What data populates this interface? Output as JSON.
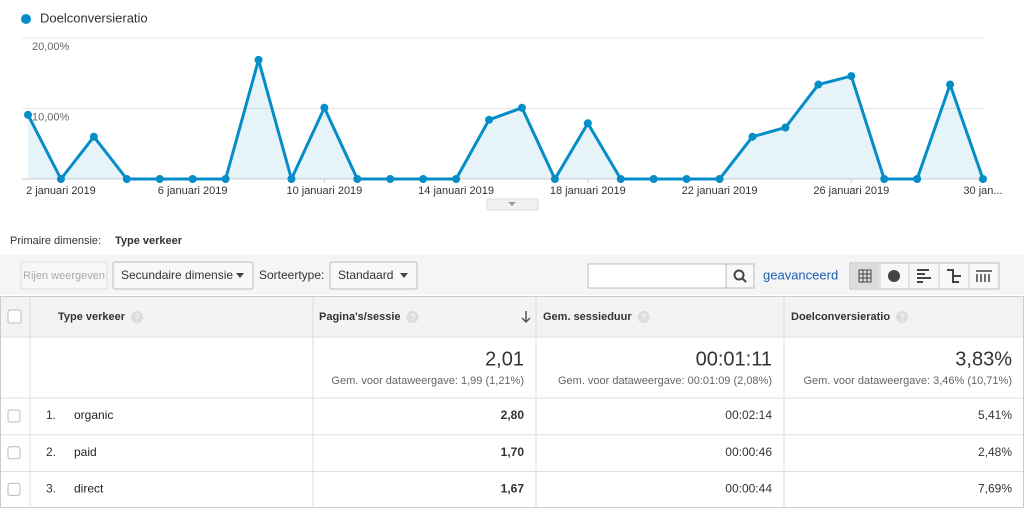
{
  "chart_data": {
    "type": "line",
    "categories": [
      null,
      "2 januari 2019",
      null,
      null,
      null,
      "6 januari 2019",
      null,
      null,
      null,
      "10 januari 2019",
      null,
      null,
      null,
      "14 januari 2019",
      null,
      null,
      null,
      "18 januari 2019",
      null,
      null,
      null,
      "22 januari 2019",
      null,
      null,
      null,
      "26 januari 2019",
      null,
      null,
      null,
      "30 jan..."
    ],
    "series": [
      {
        "name": "Doelconversieratio",
        "color": "#058dc7",
        "values": [
          9.1,
          0,
          6.0,
          0,
          0,
          0,
          0,
          16.9,
          0,
          10.1,
          0,
          0,
          0,
          0,
          8.4,
          10.1,
          0,
          7.9,
          0,
          0,
          0,
          0,
          6.0,
          7.3,
          13.4,
          14.6,
          0,
          0,
          13.4,
          0
        ]
      }
    ],
    "ylim": [
      0,
      20
    ],
    "yticks": [
      {
        "value": 10,
        "label": "10,00%"
      },
      {
        "value": 20,
        "label": "20,00%"
      }
    ],
    "grid": true
  },
  "primary_dimension": {
    "label": "Primaire dimensie:",
    "value": "Type verkeer"
  },
  "toolbar": {
    "show_rows": "Rijen weergeven",
    "secondary_dimension": "Secundaire dimensie",
    "sort_label": "Sorteertype:",
    "sort_value": "Standaard",
    "advanced": "geavanceerd"
  },
  "table": {
    "columns": [
      "Type verkeer",
      "Pagina's/sessie",
      "Gem. sessieduur",
      "Doelconversieratio"
    ],
    "totals": [
      {
        "value": "2,01",
        "note": "Gem. voor dataweergave: 1,99 (1,21%)"
      },
      {
        "value": "00:01:11",
        "note": "Gem. voor dataweergave: 00:01:09 (2,08%)"
      },
      {
        "value": "3,83%",
        "note": "Gem. voor dataweergave: 3,46% (10,71%)"
      }
    ],
    "rows": [
      [
        "1.",
        "organic",
        "2,80",
        "00:02:14",
        "5,41%"
      ],
      [
        "2.",
        "paid",
        "1,70",
        "00:00:46",
        "2,48%"
      ],
      [
        "3.",
        "direct",
        "1,67",
        "00:00:44",
        "7,69%"
      ]
    ]
  }
}
